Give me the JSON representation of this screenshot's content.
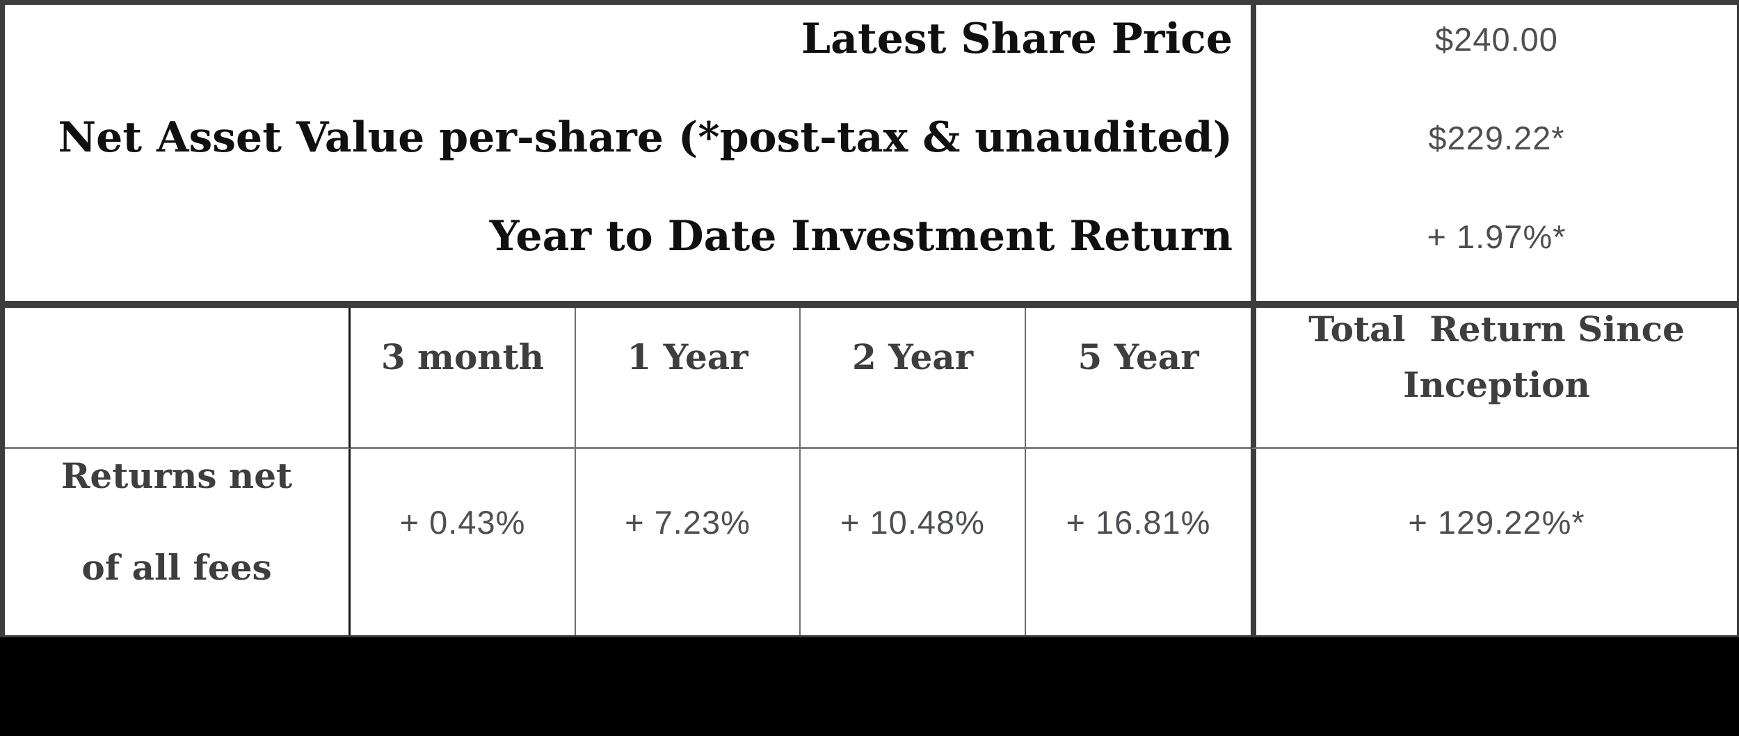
{
  "summary": {
    "rows": [
      {
        "label": "Latest Share Price",
        "value": "$240.00"
      },
      {
        "label": "Net Asset Value per-share (*post-tax & unaudited)",
        "value": "$229.22*"
      },
      {
        "label": "Year to Date Investment Return",
        "value": "+ 1.97%*"
      }
    ]
  },
  "returns": {
    "row_label": "Returns net\nof all fees",
    "headers": [
      "3 month",
      "1 Year",
      "2 Year",
      "5 Year",
      "Total  Return Since\nInception"
    ],
    "values": [
      "+ 0.43%",
      "+ 7.23%",
      "+ 10.48%",
      "+ 16.81%",
      "+ 129.22%*"
    ]
  },
  "colors": {
    "border_dark": "#3d3d3d",
    "thin_line_gray": "#7f7f7f",
    "label_black": "#101010",
    "header_gray": "#3e3e3e",
    "value_gray": "#4d4f52",
    "footer_black": "#000000"
  }
}
